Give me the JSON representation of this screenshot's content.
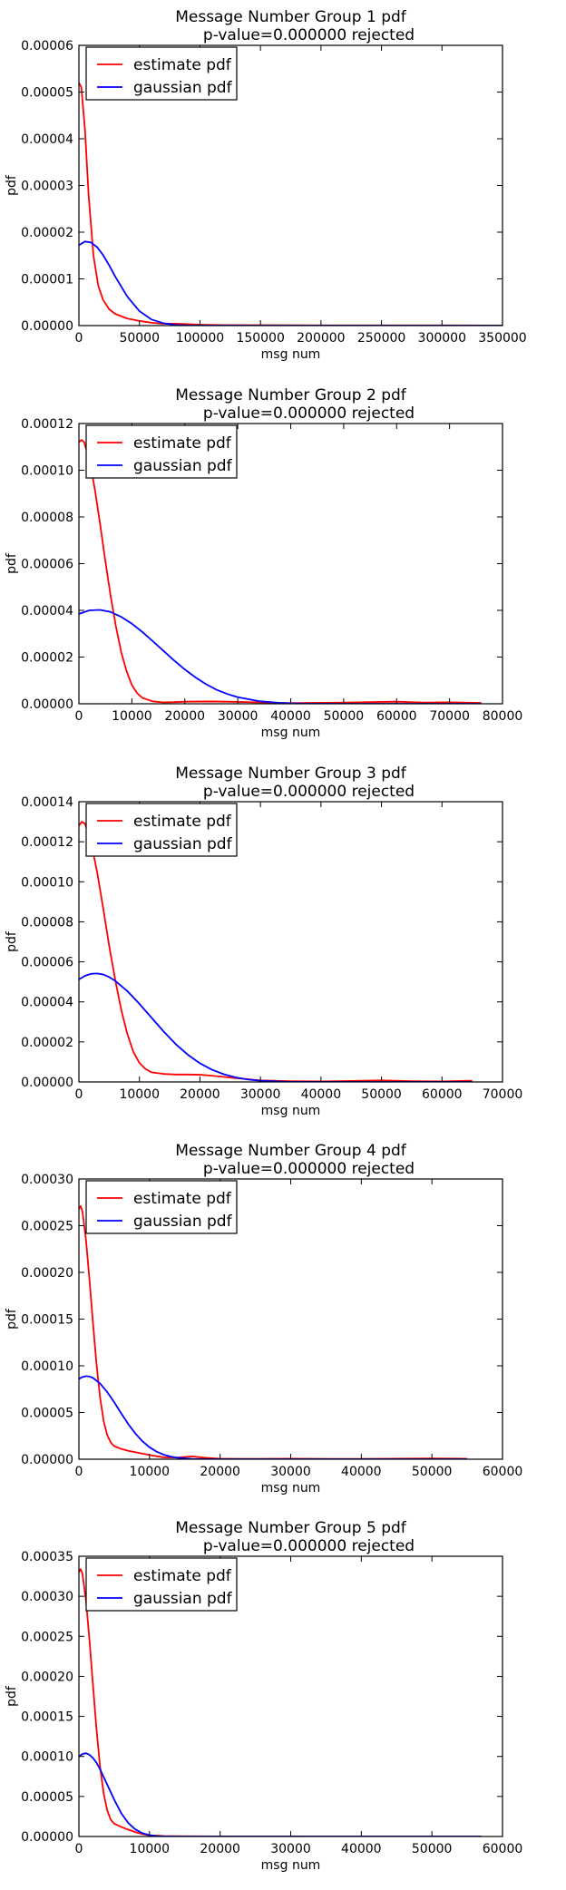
{
  "chart_data": [
    {
      "type": "line",
      "title": "Message Number Group 1 pdf",
      "subtitle": "p-value=0.000000  rejected",
      "xlabel": "msg num",
      "ylabel": "pdf",
      "xlim": [
        0,
        350000
      ],
      "ylim": [
        0,
        6e-05
      ],
      "x_ticks": [
        "0",
        "50000",
        "100000",
        "150000",
        "200000",
        "250000",
        "300000",
        "350000"
      ],
      "y_ticks": [
        "0.00000",
        "0.00001",
        "0.00002",
        "0.00003",
        "0.00004",
        "0.00005",
        "0.00006"
      ],
      "grid": false,
      "legend_position": "upper-left",
      "series": [
        {
          "name": "estimate pdf",
          "color": "#ff0000",
          "x": [
            0,
            2000,
            5000,
            8000,
            12000,
            16000,
            20000,
            25000,
            30000,
            40000,
            50000,
            60000,
            70000,
            80000,
            90000,
            100000,
            120000,
            150000,
            200000,
            250000,
            300000,
            350000
          ],
          "y": [
            5.2e-05,
            5.1e-05,
            4.2e-05,
            2.8e-05,
            1.5e-05,
            8.5e-06,
            5.5e-06,
            3.5e-06,
            2.5e-06,
            1.5e-06,
            1e-06,
            6e-07,
            4e-07,
            4e-07,
            3e-07,
            2e-07,
            1e-07,
            1e-07,
            5e-08,
            5e-08,
            5e-08,
            0.0
          ]
        },
        {
          "name": "gaussian pdf",
          "color": "#0000ff",
          "x": [
            0,
            5000,
            10000,
            15000,
            20000,
            25000,
            30000,
            40000,
            50000,
            60000,
            70000,
            80000,
            90000,
            100000,
            120000,
            150000,
            200000,
            250000,
            300000,
            350000
          ],
          "y": [
            1.72e-05,
            1.8e-05,
            1.78e-05,
            1.68e-05,
            1.51e-05,
            1.29e-05,
            1.05e-05,
            6.2e-06,
            3.1e-06,
            1.3e-06,
            5e-07,
            1.5e-07,
            4e-08,
            1e-08,
            0.0,
            0.0,
            0.0,
            0.0,
            0.0,
            0.0
          ]
        }
      ]
    },
    {
      "type": "line",
      "title": "Message Number Group 2 pdf",
      "subtitle": "p-value=0.000000  rejected",
      "xlabel": "msg num",
      "ylabel": "pdf",
      "xlim": [
        0,
        80000
      ],
      "ylim": [
        0,
        0.00012
      ],
      "x_ticks": [
        "0",
        "10000",
        "20000",
        "30000",
        "40000",
        "50000",
        "60000",
        "70000",
        "80000"
      ],
      "y_ticks": [
        "0.00000",
        "0.00002",
        "0.00004",
        "0.00006",
        "0.00008",
        "0.00010",
        "0.00012"
      ],
      "grid": false,
      "legend_position": "upper-left",
      "series": [
        {
          "name": "estimate pdf",
          "color": "#ff0000",
          "x": [
            0,
            500,
            1000,
            2000,
            3000,
            4000,
            5000,
            6000,
            7000,
            8000,
            9000,
            10000,
            11000,
            12000,
            14000,
            16000,
            18000,
            20000,
            25000,
            30000,
            40000,
            50000,
            60000,
            65000,
            70000,
            76000
          ],
          "y": [
            0.000112,
            0.000113,
            0.000112,
            0.000104,
            9.2e-05,
            7.7e-05,
            6.1e-05,
            4.6e-05,
            3.3e-05,
            2.2e-05,
            1.4e-05,
            8e-06,
            4.5e-06,
            2.5e-06,
            1e-06,
            6e-07,
            7e-07,
            9e-07,
            1e-06,
            8e-07,
            3e-07,
            5e-07,
            9e-07,
            5e-07,
            6e-07,
            4e-07
          ]
        },
        {
          "name": "gaussian pdf",
          "color": "#0000ff",
          "x": [
            0,
            2000,
            4000,
            6000,
            8000,
            10000,
            12000,
            14000,
            16000,
            18000,
            20000,
            22000,
            24000,
            26000,
            28000,
            30000,
            34000,
            38000,
            42000,
            50000,
            60000,
            70000,
            76000
          ],
          "y": [
            3.85e-05,
            4e-05,
            4.02e-05,
            3.93e-05,
            3.72e-05,
            3.43e-05,
            3.07e-05,
            2.67e-05,
            2.26e-05,
            1.85e-05,
            1.47e-05,
            1.13e-05,
            8.4e-06,
            6e-06,
            4.2e-06,
            2.8e-06,
            1.1e-06,
            4e-07,
            1e-07,
            0.0,
            0.0,
            0.0,
            0.0
          ]
        }
      ]
    },
    {
      "type": "line",
      "title": "Message Number Group 3 pdf",
      "subtitle": "p-value=0.000000  rejected",
      "xlabel": "msg num",
      "ylabel": "pdf",
      "xlim": [
        0,
        70000
      ],
      "ylim": [
        0,
        0.00014
      ],
      "x_ticks": [
        "0",
        "10000",
        "20000",
        "30000",
        "40000",
        "50000",
        "60000",
        "70000"
      ],
      "y_ticks": [
        "0.00000",
        "0.00002",
        "0.00004",
        "0.00006",
        "0.00008",
        "0.00010",
        "0.00012",
        "0.00014"
      ],
      "grid": false,
      "legend_position": "upper-left",
      "series": [
        {
          "name": "estimate pdf",
          "color": "#ff0000",
          "x": [
            0,
            500,
            1000,
            2000,
            3000,
            4000,
            5000,
            6000,
            7000,
            8000,
            9000,
            10000,
            11000,
            12000,
            14000,
            16000,
            18000,
            20000,
            22000,
            24000,
            26000,
            30000,
            35000,
            40000,
            45000,
            50000,
            55000,
            60000,
            65000
          ],
          "y": [
            0.000128,
            0.00013,
            0.000129,
            0.00012,
            0.000105,
            8.7e-05,
            6.8e-05,
            5.1e-05,
            3.6e-05,
            2.4e-05,
            1.5e-05,
            9.5e-06,
            6.5e-06,
            4.8e-06,
            4e-06,
            3.7e-06,
            3.7e-06,
            3.6e-06,
            3.1e-06,
            2.5e-06,
            1.9e-06,
            8e-07,
            4e-07,
            3e-07,
            5e-07,
            8e-07,
            4e-07,
            3e-07,
            6e-07
          ]
        },
        {
          "name": "gaussian pdf",
          "color": "#0000ff",
          "x": [
            0,
            1000,
            2000,
            3000,
            4000,
            5000,
            6000,
            8000,
            10000,
            12000,
            14000,
            16000,
            18000,
            20000,
            22000,
            24000,
            26000,
            28000,
            30000,
            34000,
            40000,
            50000,
            60000,
            65000
          ],
          "y": [
            5.12e-05,
            5.3e-05,
            5.4e-05,
            5.42e-05,
            5.37e-05,
            5.24e-05,
            5.05e-05,
            4.54e-05,
            3.9e-05,
            3.21e-05,
            2.52e-05,
            1.89e-05,
            1.36e-05,
            9.3e-06,
            6.1e-06,
            3.8e-06,
            2.2e-06,
            1.2e-06,
            6e-07,
            1e-07,
            0.0,
            0.0,
            0.0,
            0.0
          ]
        }
      ]
    },
    {
      "type": "line",
      "title": "Message Number Group 4 pdf",
      "subtitle": "p-value=0.000000  rejected",
      "xlabel": "msg num",
      "ylabel": "pdf",
      "xlim": [
        0,
        60000
      ],
      "ylim": [
        0,
        0.0003
      ],
      "x_ticks": [
        "0",
        "10000",
        "20000",
        "30000",
        "40000",
        "50000",
        "60000"
      ],
      "y_ticks": [
        "0.00000",
        "0.00005",
        "0.00010",
        "0.00015",
        "0.00020",
        "0.00025",
        "0.00030"
      ],
      "grid": false,
      "legend_position": "upper-left",
      "series": [
        {
          "name": "estimate pdf",
          "color": "#ff0000",
          "x": [
            0,
            250,
            500,
            1000,
            1500,
            2000,
            2500,
            3000,
            3500,
            4000,
            4500,
            5000,
            6000,
            7000,
            8000,
            10000,
            12000,
            14000,
            16000,
            18000,
            20000,
            25000,
            30000,
            35000,
            40000,
            45000,
            50000,
            55000
          ],
          "y": [
            0.000268,
            0.000271,
            0.000265,
            0.000235,
            0.000192,
            0.000145,
            0.000101,
            6.6e-05,
            4.1e-05,
            2.6e-05,
            1.8e-05,
            1.4e-05,
            1.1e-05,
            9e-06,
            7.5e-06,
            4.5e-06,
            2e-06,
            1.8e-06,
            3e-06,
            1.5e-06,
            5e-07,
            3e-07,
            6e-07,
            3e-07,
            4e-07,
            6e-07,
            8e-07,
            5e-07
          ]
        },
        {
          "name": "gaussian pdf",
          "color": "#0000ff",
          "x": [
            0,
            500,
            1000,
            1500,
            2000,
            3000,
            4000,
            5000,
            6000,
            7000,
            8000,
            9000,
            10000,
            11000,
            12000,
            13000,
            14000,
            16000,
            18000,
            20000,
            25000,
            30000,
            40000,
            55000
          ],
          "y": [
            8.6e-05,
            8.8e-05,
            8.9e-05,
            8.85e-05,
            8.7e-05,
            8.1e-05,
            7.2e-05,
            6.1e-05,
            4.9e-05,
            3.75e-05,
            2.75e-05,
            1.92e-05,
            1.28e-05,
            8.1e-06,
            4.9e-06,
            2.8e-06,
            1.5e-06,
            4e-07,
            1e-07,
            0.0,
            0.0,
            0.0,
            0.0,
            0.0
          ]
        }
      ]
    },
    {
      "type": "line",
      "title": "Message Number Group 5 pdf",
      "subtitle": "p-value=0.000000  rejected",
      "xlabel": "msg num",
      "ylabel": "pdf",
      "xlim": [
        0,
        60000
      ],
      "ylim": [
        0,
        0.00035
      ],
      "x_ticks": [
        "0",
        "10000",
        "20000",
        "30000",
        "40000",
        "50000",
        "60000"
      ],
      "y_ticks": [
        "0.00000",
        "0.00005",
        "0.00010",
        "0.00015",
        "0.00020",
        "0.00025",
        "0.00030",
        "0.00035"
      ],
      "grid": false,
      "legend_position": "upper-left",
      "series": [
        {
          "name": "estimate pdf",
          "color": "#ff0000",
          "x": [
            0,
            250,
            500,
            1000,
            1500,
            2000,
            2500,
            3000,
            3500,
            4000,
            4500,
            5000,
            6000,
            7000,
            8000,
            9000,
            10000,
            12000,
            15000,
            20000,
            30000,
            40000,
            50000,
            57000
          ],
          "y": [
            0.00033,
            0.000334,
            0.000328,
            0.000295,
            0.000245,
            0.000188,
            0.000133,
            8.7e-05,
            5.4e-05,
            3.3e-05,
            2.1e-05,
            1.6e-05,
            1.2e-05,
            8.5e-06,
            5.5e-06,
            3e-06,
            1.5e-06,
            5e-07,
            2e-07,
            1e-07,
            1e-07,
            0.0,
            0.0,
            0.0
          ]
        },
        {
          "name": "gaussian pdf",
          "color": "#0000ff",
          "x": [
            0,
            500,
            1000,
            1500,
            2000,
            2500,
            3000,
            4000,
            5000,
            6000,
            7000,
            8000,
            9000,
            10000,
            11000,
            12000,
            14000,
            16000,
            20000,
            30000,
            40000,
            50000,
            57000
          ],
          "y": [
            0.0001,
            0.000103,
            0.000104,
            0.000102,
            9.8e-05,
            9.2e-05,
            8.4e-05,
            6.5e-05,
            4.6e-05,
            2.9e-05,
            1.68e-05,
            8.8e-06,
            4.1e-06,
            1.7e-06,
            6e-07,
            2e-07,
            0.0,
            0.0,
            0.0,
            0.0,
            0.0,
            0.0,
            0.0
          ]
        }
      ]
    }
  ]
}
